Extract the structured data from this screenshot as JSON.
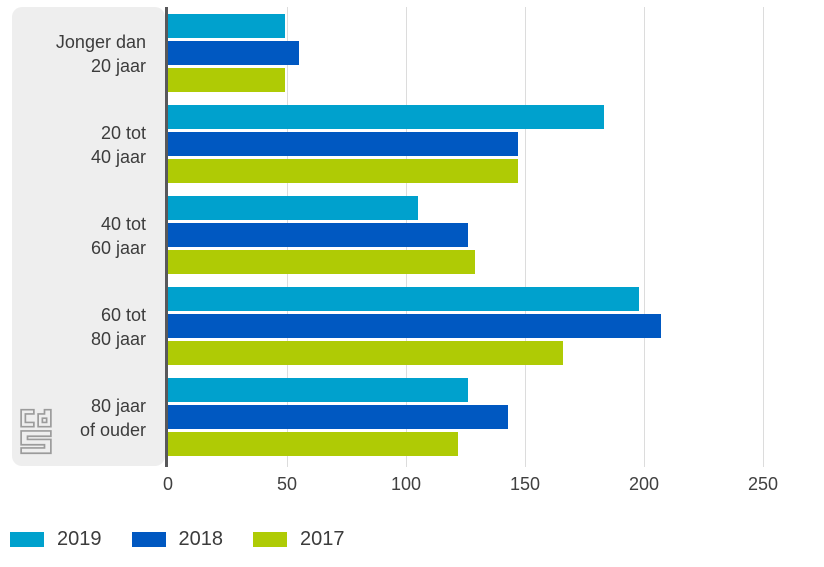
{
  "chart_data": {
    "type": "bar",
    "orientation": "horizontal",
    "title": "",
    "categories": [
      {
        "line1": "Jonger dan",
        "line2": "20 jaar"
      },
      {
        "line1": "20 tot",
        "line2": "40 jaar"
      },
      {
        "line1": "40 tot",
        "line2": "60 jaar"
      },
      {
        "line1": "60 tot",
        "line2": "80 jaar"
      },
      {
        "line1": "80 jaar",
        "line2": "of ouder"
      }
    ],
    "series": [
      {
        "name": "2019",
        "color": "#00a1cd",
        "values": [
          49,
          183,
          105,
          198,
          126
        ]
      },
      {
        "name": "2018",
        "color": "#0058c1",
        "values": [
          55,
          147,
          126,
          207,
          143
        ]
      },
      {
        "name": "2017",
        "color": "#afcb05",
        "values": [
          49,
          147,
          129,
          166,
          122
        ]
      }
    ],
    "x_ticks": [
      0,
      50,
      100,
      150,
      200,
      250
    ],
    "xlim": [
      0,
      261
    ],
    "grid": true,
    "legend_position": "bottom",
    "xlabel": "",
    "ylabel": ""
  },
  "legend": {
    "items": [
      {
        "label": "2019",
        "color": "#00a1cd"
      },
      {
        "label": "2018",
        "color": "#0058c1"
      },
      {
        "label": "2017",
        "color": "#afcb05"
      }
    ]
  },
  "branding": {
    "logo_name": "cbs-logo"
  },
  "colors": {
    "panel_bg": "#eeeeee",
    "axis_line": "#58585a",
    "gridline": "#dcdcdc",
    "text": "#3c3c3c",
    "logo_outline": "#9b9b9b"
  }
}
